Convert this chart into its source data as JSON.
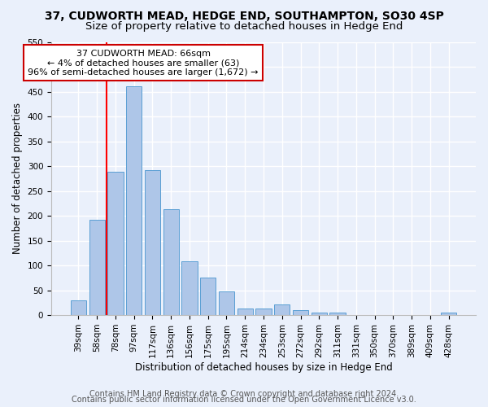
{
  "title": "37, CUDWORTH MEAD, HEDGE END, SOUTHAMPTON, SO30 4SP",
  "subtitle": "Size of property relative to detached houses in Hedge End",
  "xlabel": "Distribution of detached houses by size in Hedge End",
  "ylabel": "Number of detached properties",
  "categories": [
    "39sqm",
    "58sqm",
    "78sqm",
    "97sqm",
    "117sqm",
    "136sqm",
    "156sqm",
    "175sqm",
    "195sqm",
    "214sqm",
    "234sqm",
    "253sqm",
    "272sqm",
    "292sqm",
    "311sqm",
    "331sqm",
    "350sqm",
    "370sqm",
    "389sqm",
    "409sqm",
    "428sqm"
  ],
  "values": [
    30,
    192,
    288,
    460,
    292,
    213,
    109,
    75,
    47,
    13,
    13,
    21,
    10,
    5,
    5,
    0,
    0,
    0,
    0,
    0,
    5
  ],
  "bar_color": "#aec6e8",
  "bar_edge_color": "#5a9fd4",
  "red_line_x": 1.5,
  "annotation_text": "37 CUDWORTH MEAD: 66sqm\n← 4% of detached houses are smaller (63)\n96% of semi-detached houses are larger (1,672) →",
  "annotation_box_color": "#ffffff",
  "annotation_box_edge": "#cc0000",
  "ylim": [
    0,
    550
  ],
  "yticks": [
    0,
    50,
    100,
    150,
    200,
    250,
    300,
    350,
    400,
    450,
    500,
    550
  ],
  "footer_line1": "Contains HM Land Registry data © Crown copyright and database right 2024.",
  "footer_line2": "Contains public sector information licensed under the Open Government Licence v3.0.",
  "bg_color": "#eaf0fb",
  "plot_bg_color": "#eaf0fb",
  "grid_color": "#ffffff",
  "title_fontsize": 10,
  "subtitle_fontsize": 9.5,
  "axis_label_fontsize": 8.5,
  "tick_fontsize": 7.5,
  "annotation_fontsize": 8,
  "footer_fontsize": 7
}
